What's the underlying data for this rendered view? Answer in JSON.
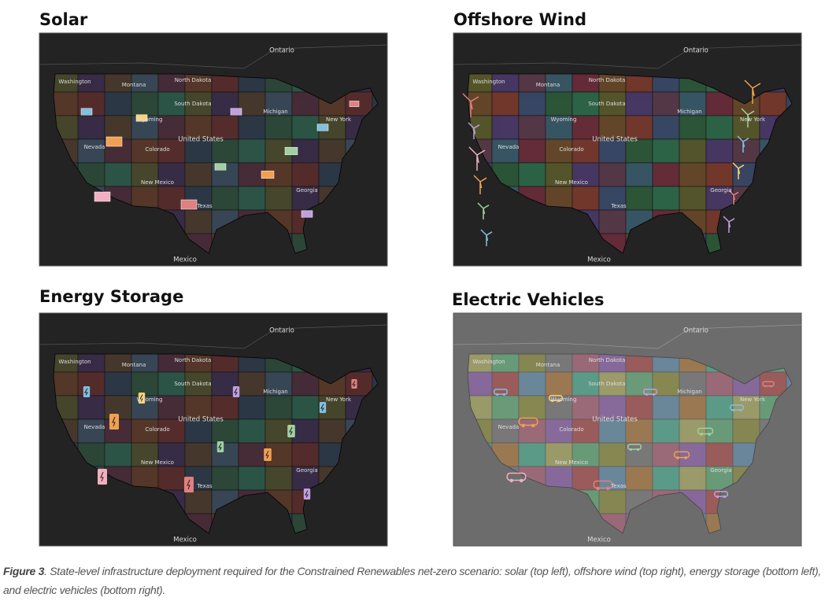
{
  "figure": {
    "panels": [
      {
        "title": "Solar",
        "labels": [
          "Ontario",
          "Washington",
          "Montana",
          "North Dakota",
          "South Dakota",
          "Wyoming",
          "Nevada",
          "Colorado",
          "United States",
          "New Mexico",
          "Texas",
          "Michigan",
          "New York",
          "Georgia",
          "Mexico"
        ]
      },
      {
        "title": "Offshore Wind",
        "labels": [
          "Ontario",
          "Washington",
          "Montana",
          "North Dakota",
          "South Dakota",
          "Wyoming",
          "Nevada",
          "Colorado",
          "United States",
          "New Mexico",
          "Texas",
          "Michigan",
          "New York",
          "Georgia",
          "Mexico"
        ]
      },
      {
        "title": "Energy Storage",
        "labels": [
          "Ontario",
          "Washington",
          "Montana",
          "North Dakota",
          "South Dakota",
          "Wyoming",
          "Nevada",
          "Colorado",
          "United States",
          "New Mexico",
          "Texas",
          "Michigan",
          "New York",
          "Georgia",
          "Mexico"
        ]
      },
      {
        "title": "Electric Vehicles",
        "labels": [
          "Ontario",
          "Washington",
          "Montana",
          "North Dakota",
          "South Dakota",
          "Wyoming",
          "Nevada",
          "Colorado",
          "United States",
          "New Mexico",
          "Texas",
          "Michigan",
          "New York",
          "Georgia",
          "Mexico"
        ]
      }
    ],
    "caption": {
      "label": "Figure 3",
      "text": ". State-level infrastructure deployment required for the Constrained Renewables net-zero scenario: solar (top left), offshore wind (top right), energy storage (bottom left), and electric vehicles (bottom right)."
    }
  }
}
